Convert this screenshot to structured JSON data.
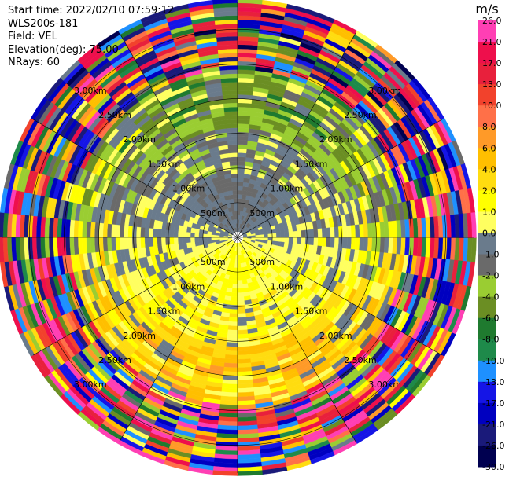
{
  "header": {
    "start_time": "Start time: 2022/02/10 07:59:12",
    "instrument": "WLS200s-181",
    "field": "Field: VEL",
    "elevation": "Elevation(deg): 75.00",
    "nrays": "NRays: 60"
  },
  "colorbar": {
    "unit": "m/s",
    "ticks": [
      "26.0",
      "21.0",
      "17.0",
      "13.0",
      "10.0",
      "8.0",
      "6.0",
      "4.0",
      "2.0",
      "1.0",
      "0.0",
      "-1.0",
      "-2.0",
      "-4.0",
      "-6.0",
      "-8.0",
      "-10.0",
      "-13.0",
      "-17.0",
      "-21.0",
      "-26.0",
      "-30.0"
    ],
    "colors": [
      "#ff3fb4",
      "#ee0f4c",
      "#e8203c",
      "#f2422c",
      "#ff7048",
      "#ff9a28",
      "#ffbf00",
      "#ffdc10",
      "#ffff00",
      "#ffff60",
      "#6a7b8c",
      "#6a6a6a",
      "#9acd32",
      "#6b8e23",
      "#1f7a2f",
      "#1e8a4a",
      "#1e90ff",
      "#1515e6",
      "#0000c0",
      "#1a1a7a",
      "#000050"
    ]
  },
  "chart_data": {
    "type": "heatmap",
    "projection": "polar (PPI scan)",
    "n_rays": 60,
    "range_ring_labels": [
      "500m",
      "1.00km",
      "1.50km",
      "2.00km",
      "2.50km",
      "3.00km"
    ],
    "range_rings_km": [
      0.5,
      1.0,
      1.5,
      2.0,
      2.5,
      3.0
    ],
    "max_range_km": 3.4,
    "value_range": [
      -30,
      30
    ],
    "unit": "m/s"
  }
}
